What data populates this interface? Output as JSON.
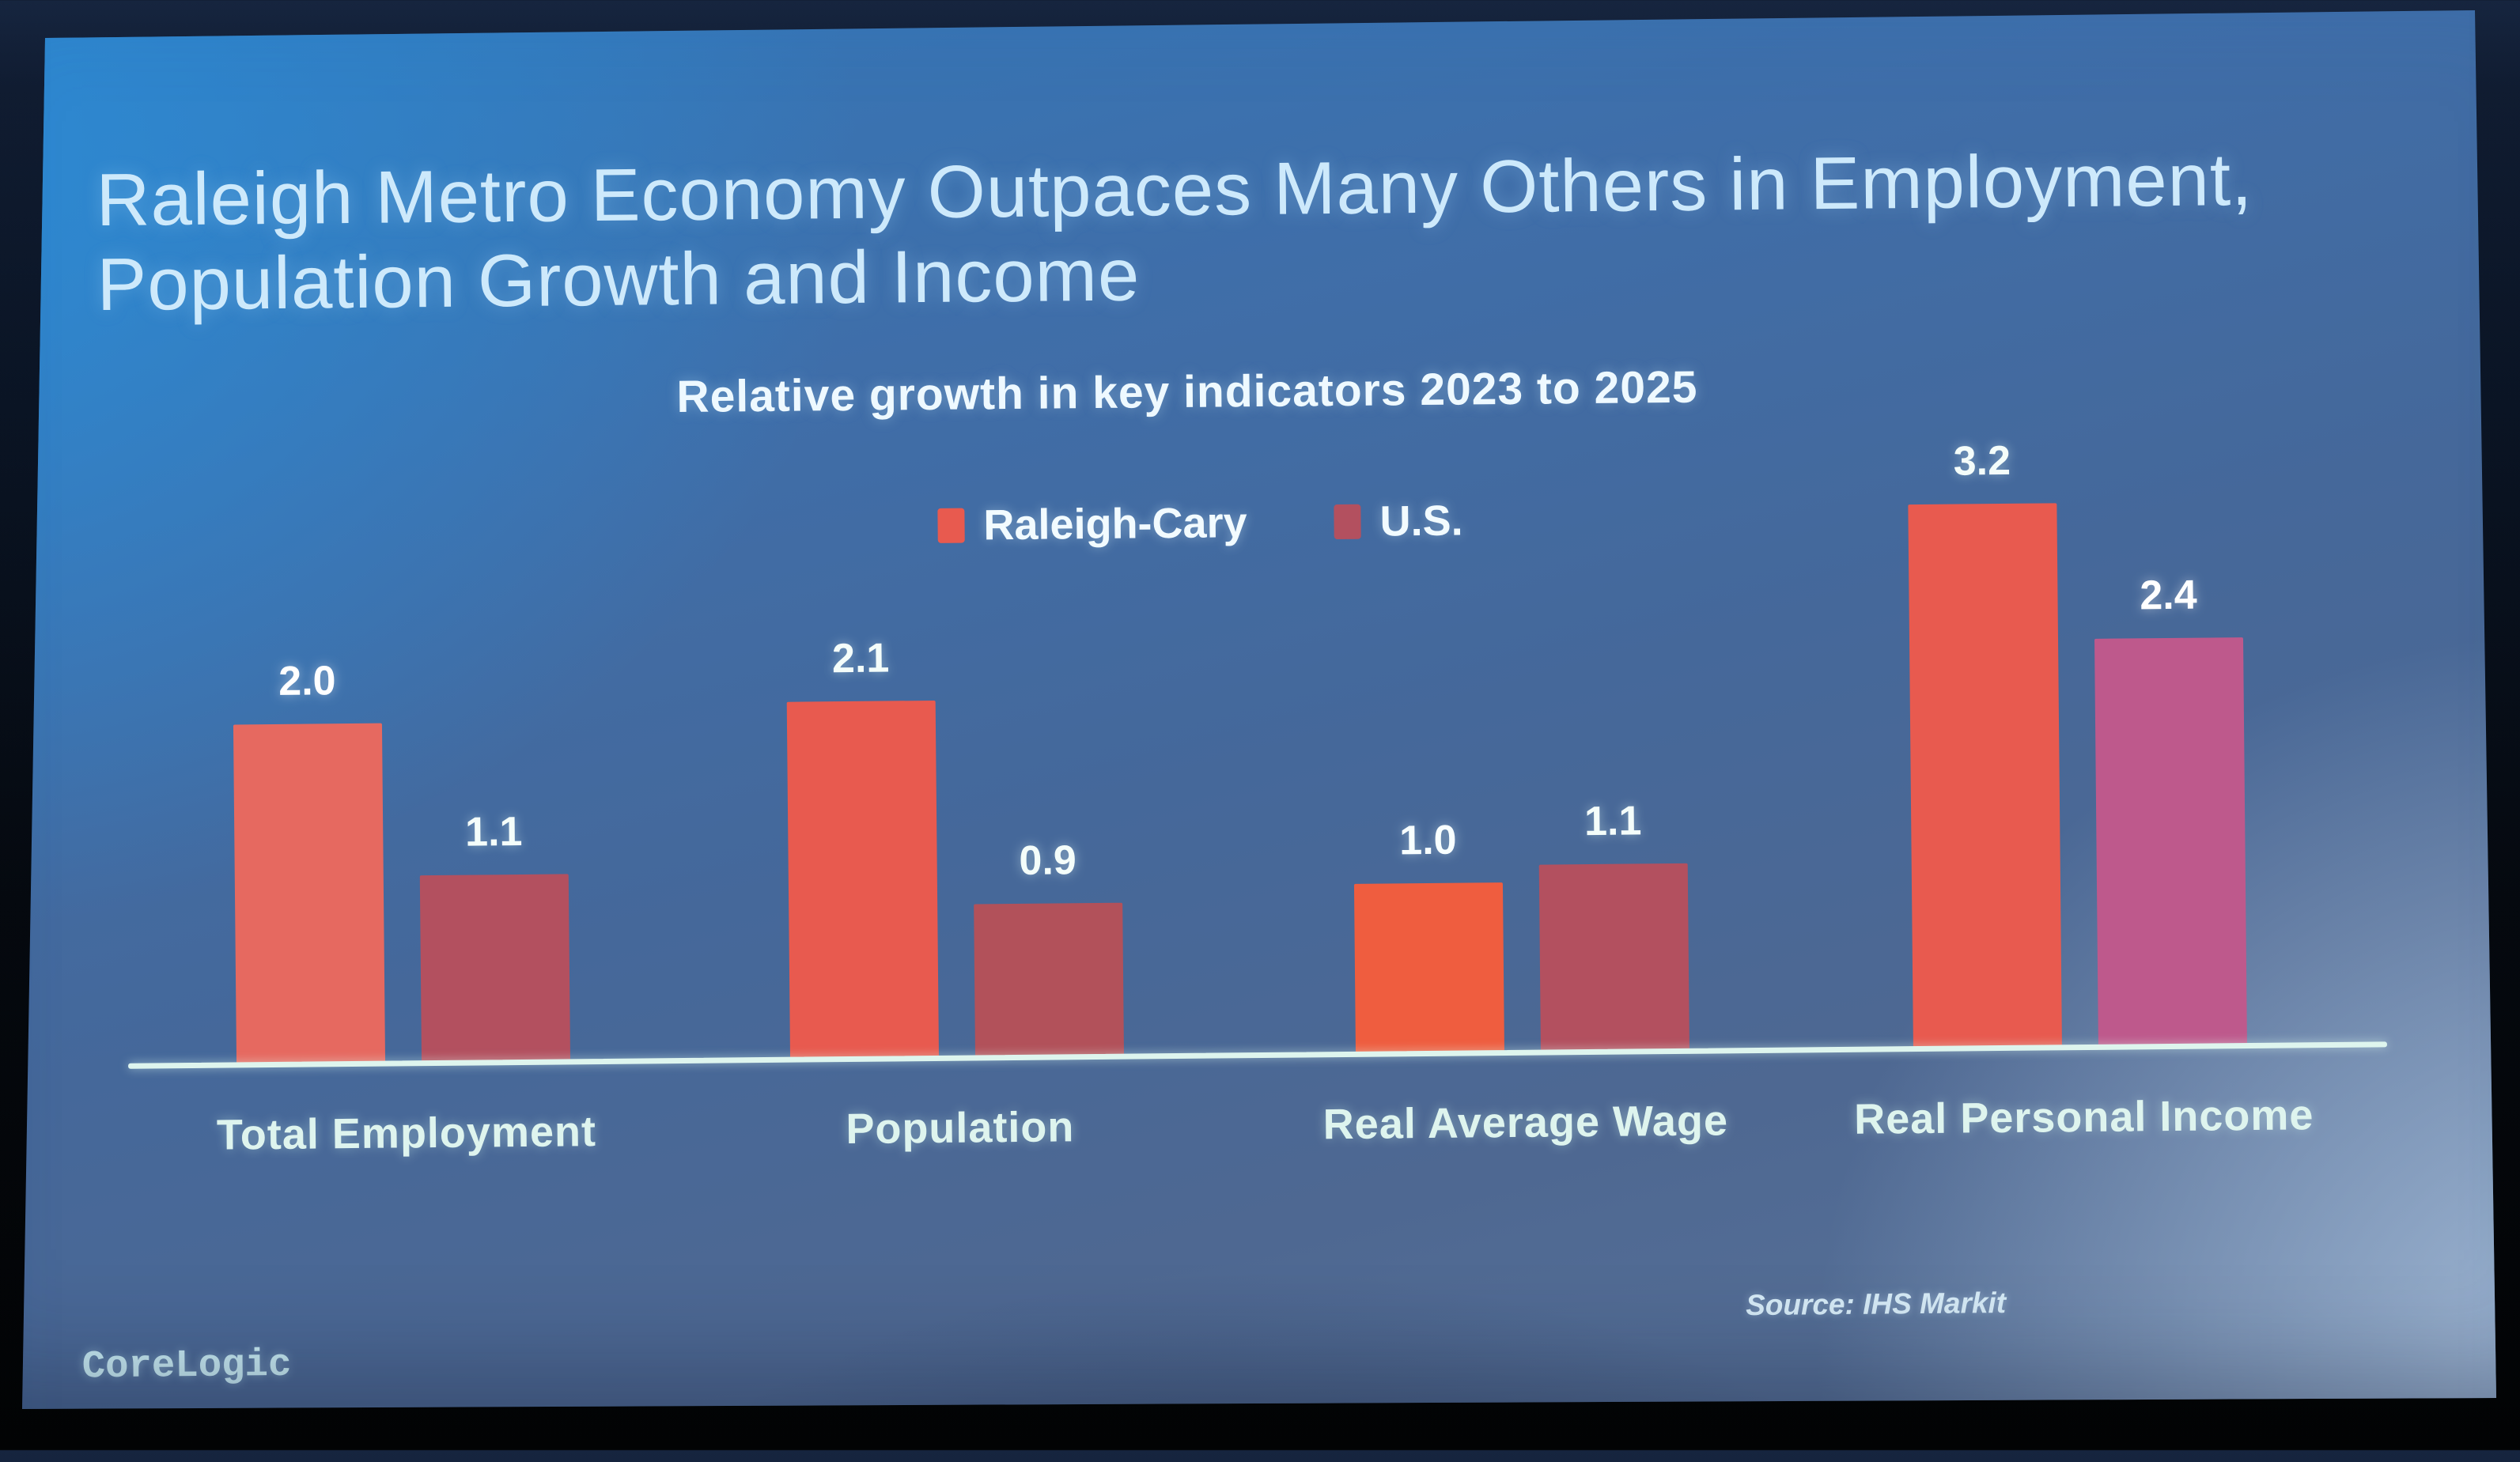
{
  "slide": {
    "title_line1": "Raleigh Metro Economy Outpaces Many Others in Employment,",
    "title_line2": "Population Growth and Income",
    "source": "Source: IHS Markit",
    "logo": "CoreLogic"
  },
  "chart_data": {
    "type": "bar",
    "title": "Relative growth in key indicators 2023 to 2025",
    "categories": [
      "Total Employment",
      "Population",
      "Real Average Wage",
      "Real Personal Income"
    ],
    "series": [
      {
        "name": "Raleigh-Cary",
        "color": "#e85a4f",
        "values": [
          2.0,
          2.1,
          1.0,
          3.2
        ],
        "labels": [
          "2.0",
          "2.1",
          "1.0",
          "3.2"
        ]
      },
      {
        "name": "U.S.",
        "color": "#b3505f",
        "values": [
          1.1,
          0.9,
          1.1,
          2.4
        ],
        "labels": [
          "1.1",
          "0.9",
          "1.1",
          "2.4"
        ]
      }
    ],
    "legend_position": "top",
    "grid": false,
    "ylim": [
      0,
      3.5
    ],
    "axis_line_color": "#def5ee",
    "value_label_color": "#f4fdfa",
    "category_label_color": "#def4ee",
    "background_color": "#45689a"
  }
}
